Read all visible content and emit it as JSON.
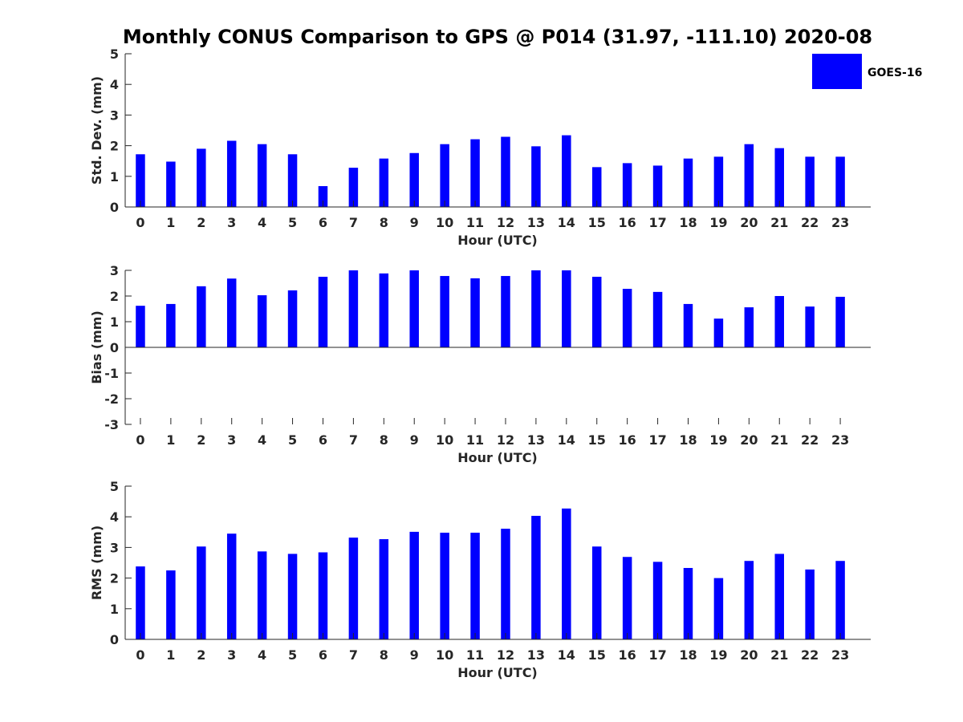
{
  "figure": {
    "title": "Monthly CONUS Comparison to GPS @ P014 (31.97, -111.10) 2020-08"
  },
  "legend": {
    "label": "GOES-16",
    "placement": "top-right",
    "color": "#0000ff"
  },
  "chart_data": [
    {
      "type": "bar",
      "title": "",
      "xlabel": "Hour (UTC)",
      "ylabel": "Std. Dev. (mm)",
      "ylim": [
        0,
        5
      ],
      "yticks": [
        "0",
        "1",
        "2",
        "3",
        "4",
        "5"
      ],
      "categories": [
        "0",
        "1",
        "2",
        "3",
        "4",
        "5",
        "6",
        "7",
        "8",
        "9",
        "10",
        "11",
        "12",
        "13",
        "14",
        "15",
        "16",
        "17",
        "18",
        "19",
        "20",
        "21",
        "22",
        "23"
      ],
      "series": [
        {
          "name": "GOES-16",
          "color": "#0000ff",
          "values": [
            1.72,
            1.48,
            1.9,
            2.16,
            2.05,
            1.72,
            0.68,
            1.28,
            1.58,
            1.76,
            2.05,
            2.21,
            2.29,
            1.98,
            2.34,
            1.3,
            1.43,
            1.35,
            1.58,
            1.64,
            2.05,
            1.92,
            1.64,
            1.64
          ]
        }
      ],
      "grid": false,
      "legend": "top-right"
    },
    {
      "type": "bar",
      "title": "",
      "xlabel": "Hour (UTC)",
      "ylabel": "Bias (mm)",
      "ylim": [
        -3,
        3
      ],
      "yticks": [
        "-3",
        "-2",
        "-1",
        "0",
        "1",
        "2",
        "3"
      ],
      "categories": [
        "0",
        "1",
        "2",
        "3",
        "4",
        "5",
        "6",
        "7",
        "8",
        "9",
        "10",
        "11",
        "12",
        "13",
        "14",
        "15",
        "16",
        "17",
        "18",
        "19",
        "20",
        "21",
        "22",
        "23"
      ],
      "series": [
        {
          "name": "GOES-16",
          "color": "#0000ff",
          "values": [
            1.62,
            1.69,
            2.38,
            2.68,
            2.03,
            2.22,
            2.75,
            3.0,
            2.88,
            3.0,
            2.78,
            2.69,
            2.78,
            3.0,
            3.0,
            2.75,
            2.28,
            2.16,
            1.69,
            1.12,
            1.56,
            2.0,
            1.59,
            1.97
          ]
        }
      ],
      "grid": false
    },
    {
      "type": "bar",
      "title": "",
      "xlabel": "Hour (UTC)",
      "ylabel": "RMS (mm)",
      "ylim": [
        0,
        5
      ],
      "yticks": [
        "0",
        "1",
        "2",
        "3",
        "4",
        "5"
      ],
      "categories": [
        "0",
        "1",
        "2",
        "3",
        "4",
        "5",
        "6",
        "7",
        "8",
        "9",
        "10",
        "11",
        "12",
        "13",
        "14",
        "15",
        "16",
        "17",
        "18",
        "19",
        "20",
        "21",
        "22",
        "23"
      ],
      "series": [
        {
          "name": "GOES-16",
          "color": "#0000ff",
          "values": [
            2.38,
            2.25,
            3.03,
            3.45,
            2.87,
            2.79,
            2.84,
            3.32,
            3.27,
            3.51,
            3.48,
            3.48,
            3.61,
            4.03,
            4.27,
            3.03,
            2.69,
            2.53,
            2.33,
            2.0,
            2.56,
            2.79,
            2.28,
            2.56
          ]
        }
      ],
      "grid": false
    }
  ]
}
